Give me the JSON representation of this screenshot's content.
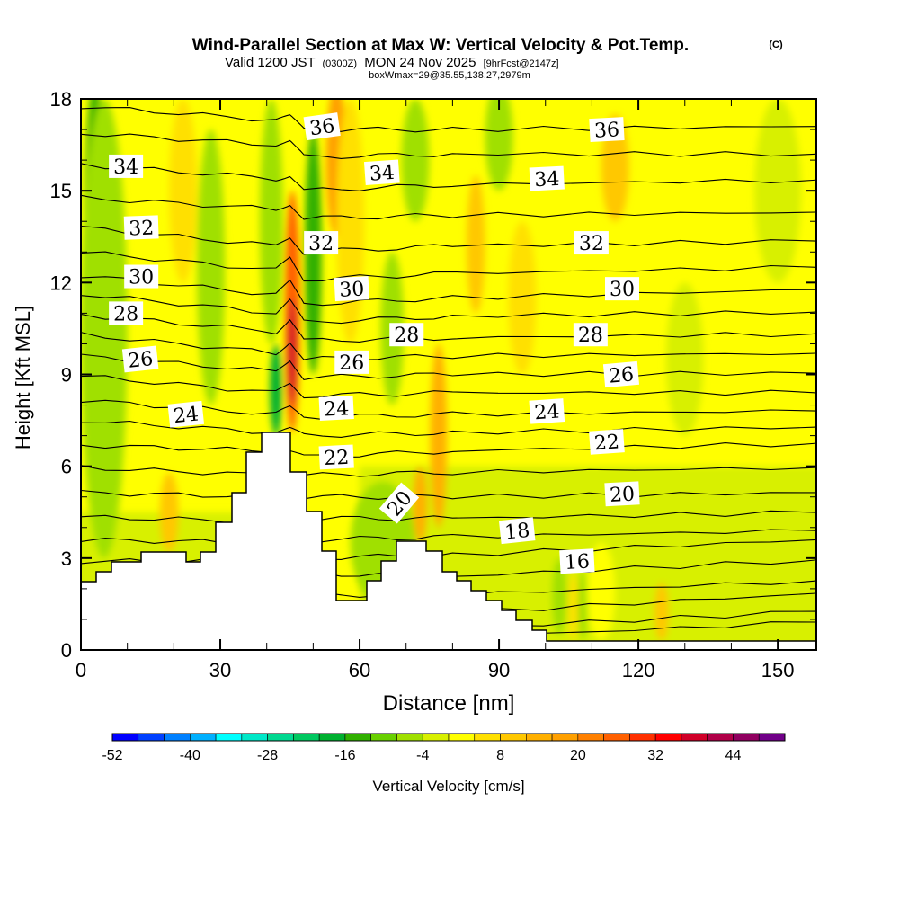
{
  "chart_data": {
    "type": "heatmap",
    "title": "Wind-Parallel Section at Max W: Vertical Velocity & Pot.Temp.",
    "title_mark": "(C)",
    "subtitle_main": "Valid 1200 JST",
    "subtitle_utc": "(0300Z)",
    "subtitle_date": "MON 24 Nov 2025",
    "subtitle_fcst": "[9hrFcst@2147z]",
    "subtitle_box": "boxWmax=29@35.55,138.27,2979m",
    "xlabel": "Distance [nm]",
    "ylabel": "Height [Kft MSL]",
    "xlim": [
      0,
      158.3
    ],
    "ylim": [
      0,
      18
    ],
    "x_ticks": [
      "0",
      "30",
      "60",
      "90",
      "120",
      "150"
    ],
    "y_ticks": [
      "0",
      "3",
      "6",
      "9",
      "12",
      "15",
      "18"
    ],
    "colorbar": {
      "label": "Vertical Velocity [cm/s]",
      "range": [
        -52,
        52
      ],
      "step": 4,
      "tick_labels": [
        "-52",
        "-40",
        "-28",
        "-16",
        "-4",
        "8",
        "20",
        "32",
        "44"
      ],
      "colors": [
        "#0000ff",
        "#0040ff",
        "#0080ff",
        "#00b0ff",
        "#00ffff",
        "#00e8c8",
        "#00d890",
        "#00c860",
        "#00b030",
        "#30b000",
        "#68d000",
        "#a0e000",
        "#d8f000",
        "#ffff00",
        "#ffe000",
        "#ffc800",
        "#ffb000",
        "#ffa000",
        "#ff8000",
        "#ff6000",
        "#ff3000",
        "#ff0000",
        "#d00028",
        "#b00048",
        "#900060",
        "#700088"
      ]
    },
    "background_w": {
      "upper": 0,
      "lower": -2,
      "lower_top_kft": 6
    },
    "w_features": [
      {
        "x": 3,
        "y0": 6.5,
        "y1": 18.5,
        "hw": 2.5,
        "value": -14
      },
      {
        "x": 5,
        "y0": 3,
        "y1": 18,
        "hw": 5,
        "value": -6
      },
      {
        "x": 19,
        "y0": 3.2,
        "y1": 5.8,
        "hw": 2,
        "value": 10
      },
      {
        "x": 22,
        "y0": 12,
        "y1": 18,
        "hw": 3,
        "value": 4
      },
      {
        "x": 28,
        "y0": 8,
        "y1": 17,
        "hw": 3,
        "value": -6
      },
      {
        "x": 42,
        "y0": 7,
        "y1": 10,
        "hw": 1.3,
        "value": -18
      },
      {
        "x": 41,
        "y0": 10,
        "y1": 18,
        "hw": 2.5,
        "value": -8
      },
      {
        "x": 45.5,
        "y0": 7.1,
        "y1": 15,
        "hw": 1.6,
        "value": 24
      },
      {
        "x": 45.5,
        "y0": 8,
        "y1": 11.5,
        "hw": 0.9,
        "value": 36
      },
      {
        "x": 50,
        "y0": 9,
        "y1": 17,
        "hw": 1.8,
        "value": -16
      },
      {
        "x": 55,
        "y0": 13.5,
        "y1": 18.5,
        "hw": 2.2,
        "value": 16
      },
      {
        "x": 58,
        "y0": 10,
        "y1": 18,
        "hw": 3,
        "value": 6
      },
      {
        "x": 65,
        "y0": 1.5,
        "y1": 5.5,
        "hw": 7,
        "value": -8
      },
      {
        "x": 67,
        "y0": 8,
        "y1": 13,
        "hw": 2.5,
        "value": -6
      },
      {
        "x": 73,
        "y0": 3.5,
        "y1": 6,
        "hw": 1.5,
        "value": 14
      },
      {
        "x": 77,
        "y0": 4,
        "y1": 10,
        "hw": 1.8,
        "value": 12
      },
      {
        "x": 72,
        "y0": 14,
        "y1": 18,
        "hw": 3,
        "value": -6
      },
      {
        "x": 85,
        "y0": 11,
        "y1": 15.5,
        "hw": 2,
        "value": 8
      },
      {
        "x": 90,
        "y0": 15,
        "y1": 18.5,
        "hw": 3,
        "value": -8
      },
      {
        "x": 95,
        "y0": 9,
        "y1": 14,
        "hw": 3,
        "value": 4
      },
      {
        "x": 103,
        "y0": 0.5,
        "y1": 3,
        "hw": 1.5,
        "value": -6
      },
      {
        "x": 106,
        "y0": 0.3,
        "y1": 2.5,
        "hw": 1,
        "value": 6
      },
      {
        "x": 108,
        "y0": 0.3,
        "y1": 2.6,
        "hw": 1,
        "value": -8
      },
      {
        "x": 112,
        "y0": 0.3,
        "y1": 3.5,
        "hw": 3,
        "value": 2
      },
      {
        "x": 115,
        "y0": 14,
        "y1": 17.5,
        "hw": 3,
        "value": 8
      },
      {
        "x": 125,
        "y0": 0.3,
        "y1": 2.2,
        "hw": 1.5,
        "value": 8
      },
      {
        "x": 130,
        "y0": 7,
        "y1": 12,
        "hw": 4,
        "value": -4
      },
      {
        "x": 150,
        "y0": 12,
        "y1": 18,
        "hw": 5,
        "value": -2
      }
    ],
    "contour_x_nodes": [
      0,
      42,
      45,
      48,
      80,
      158.3
    ],
    "contours": [
      {
        "theta": 36,
        "h": [
          17.76,
          17.3,
          17.4,
          17.0,
          17.0,
          17.1
        ]
      },
      {
        "theta": 35,
        "h": [
          16.88,
          16.5,
          16.6,
          16.1,
          16.2,
          16.2
        ]
      },
      {
        "theta": 34,
        "h": [
          15.85,
          15.4,
          15.5,
          15.0,
          15.2,
          15.35
        ]
      },
      {
        "theta": 33,
        "h": [
          14.77,
          14.4,
          14.6,
          14.1,
          14.2,
          14.3
        ]
      },
      {
        "theta": 32,
        "h": [
          13.8,
          13.2,
          13.5,
          13.0,
          13.2,
          13.36
        ]
      },
      {
        "theta": 31,
        "h": [
          13.0,
          12.4,
          12.8,
          12.1,
          12.3,
          12.5
        ]
      },
      {
        "theta": 30,
        "h": [
          12.24,
          11.6,
          12.0,
          11.3,
          11.5,
          11.77
        ]
      },
      {
        "theta": 29,
        "h": [
          11.63,
          11.0,
          11.4,
          10.7,
          10.9,
          11.04
        ]
      },
      {
        "theta": 28,
        "h": [
          10.95,
          10.4,
          10.8,
          10.1,
          10.2,
          10.33
        ]
      },
      {
        "theta": 27,
        "h": [
          10.3,
          9.7,
          10.1,
          9.5,
          9.6,
          9.69
        ]
      },
      {
        "theta": 26,
        "h": [
          9.6,
          9.1,
          9.5,
          8.9,
          9.0,
          9.04
        ]
      },
      {
        "theta": 25,
        "h": [
          8.95,
          8.4,
          8.7,
          8.3,
          8.4,
          8.4
        ]
      },
      {
        "theta": 24,
        "h": [
          8.16,
          7.7,
          7.9,
          7.6,
          7.7,
          7.81
        ]
      },
      {
        "theta": 23,
        "h": [
          7.49,
          7.1,
          7.2,
          7.0,
          7.1,
          7.28
        ]
      },
      {
        "theta": 22,
        "h": [
          6.69,
          6.5,
          6.5,
          6.3,
          6.5,
          6.75
        ]
      },
      {
        "theta": 21,
        "h": [
          5.96,
          5.7,
          5.8,
          5.7,
          5.8,
          5.96
        ]
      },
      {
        "theta": 20,
        "h": [
          5.14,
          5.0,
          5.0,
          5.0,
          5.0,
          5.14
        ]
      },
      {
        "theta": 19,
        "h": [
          4.34,
          4.2,
          4.2,
          4.3,
          4.3,
          4.49
        ]
      },
      {
        "theta": 18,
        "h": [
          3.6,
          3.5,
          3.5,
          3.6,
          3.7,
          3.9
        ]
      },
      {
        "theta": 17,
        "h": [
          2.9,
          2.9,
          2.9,
          3.0,
          3.1,
          3.6
        ]
      },
      {
        "theta": 16,
        "h": [
          2.2,
          2.2,
          2.2,
          2.5,
          2.4,
          2.94
        ]
      },
      {
        "theta": 15,
        "h": [
          1.5,
          1.5,
          1.5,
          1.8,
          1.8,
          2.26
        ]
      },
      {
        "theta": 14,
        "h": [
          1.0,
          1.0,
          1.0,
          1.2,
          1.2,
          1.85
        ]
      },
      {
        "theta": 13,
        "h": [
          0.6,
          0.6,
          0.6,
          0.7,
          0.7,
          1.26
        ]
      },
      {
        "theta": 12,
        "h": [
          0.3,
          0.3,
          0.3,
          0.4,
          0.4,
          0.91
        ]
      }
    ],
    "contour_labels": [
      {
        "text": "36",
        "x": 51.9,
        "y": 17.1
      },
      {
        "text": "36",
        "x": 113.2,
        "y": 17.0
      },
      {
        "text": "34",
        "x": 9.7,
        "y": 15.8
      },
      {
        "text": "34",
        "x": 64.8,
        "y": 15.6
      },
      {
        "text": "34",
        "x": 100.3,
        "y": 15.4
      },
      {
        "text": "32",
        "x": 13.0,
        "y": 13.8
      },
      {
        "text": "32",
        "x": 51.7,
        "y": 13.3
      },
      {
        "text": "32",
        "x": 109.9,
        "y": 13.3
      },
      {
        "text": "30",
        "x": 13.0,
        "y": 12.2
      },
      {
        "text": "30",
        "x": 58.3,
        "y": 11.8
      },
      {
        "text": "30",
        "x": 116.5,
        "y": 11.8
      },
      {
        "text": "28",
        "x": 9.7,
        "y": 11.0
      },
      {
        "text": "28",
        "x": 70.1,
        "y": 10.3
      },
      {
        "text": "28",
        "x": 109.7,
        "y": 10.3
      },
      {
        "text": "26",
        "x": 12.8,
        "y": 9.5
      },
      {
        "text": "26",
        "x": 58.3,
        "y": 9.4
      },
      {
        "text": "26",
        "x": 116.3,
        "y": 9.0
      },
      {
        "text": "24",
        "x": 22.6,
        "y": 7.7
      },
      {
        "text": "24",
        "x": 55.0,
        "y": 7.9
      },
      {
        "text": "24",
        "x": 100.3,
        "y": 7.8
      },
      {
        "text": "22",
        "x": 55.0,
        "y": 6.3
      },
      {
        "text": "22",
        "x": 113.2,
        "y": 6.8
      },
      {
        "text": "20",
        "x": 68.5,
        "y": 4.8
      },
      {
        "text": "20",
        "x": 116.5,
        "y": 5.1
      },
      {
        "text": "18",
        "x": 93.9,
        "y": 3.9
      },
      {
        "text": "16",
        "x": 106.8,
        "y": 2.9
      }
    ]
  }
}
